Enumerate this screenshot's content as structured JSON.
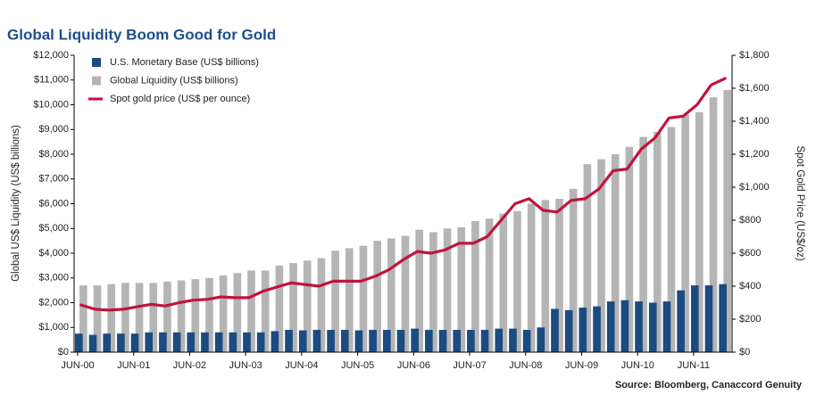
{
  "chart_data": {
    "type": "bar",
    "title": "Global Liquidity Boom Good for Gold",
    "y_label": "Global US$ Liquidity (US$ billions)",
    "y2_label": "Spot Gold Price (US$/oz)",
    "source": "Source:  Bloomberg, Canaccord Genuity",
    "categories": [
      "JUN-00",
      null,
      null,
      null,
      "JUN-01",
      null,
      null,
      null,
      "JUN-02",
      null,
      null,
      null,
      "JUN-03",
      null,
      null,
      null,
      "JUN-04",
      null,
      null,
      null,
      "JUN-05",
      null,
      null,
      null,
      "JUN-06",
      null,
      null,
      null,
      "JUN-07",
      null,
      null,
      null,
      "JUN-08",
      null,
      null,
      null,
      "JUN-09",
      null,
      null,
      null,
      "JUN-10",
      null,
      null,
      null,
      "JUN-11",
      null,
      null
    ],
    "series": [
      {
        "name": "U.S. Monetary Base (US$ billions)",
        "color": "#1b4b80",
        "type": "bar",
        "values": [
          750,
          700,
          750,
          750,
          750,
          800,
          800,
          800,
          800,
          800,
          800,
          800,
          800,
          800,
          850,
          900,
          880,
          900,
          900,
          900,
          880,
          900,
          900,
          900,
          950,
          900,
          900,
          900,
          900,
          900,
          950,
          950,
          900,
          1000,
          1750,
          1700,
          1800,
          1850,
          2050,
          2100,
          2050,
          2000,
          2050,
          2500,
          2700,
          2700,
          2750
        ]
      },
      {
        "name": "Global Liquidity (US$ billions)",
        "color": "#b5b5b5",
        "type": "bar",
        "values": [
          2700,
          2700,
          2750,
          2800,
          2800,
          2800,
          2850,
          2900,
          2950,
          3000,
          3100,
          3200,
          3300,
          3300,
          3500,
          3600,
          3700,
          3800,
          4100,
          4200,
          4300,
          4500,
          4600,
          4700,
          4950,
          4850,
          5000,
          5050,
          5300,
          5400,
          5600,
          5700,
          6000,
          6150,
          6200,
          6600,
          7600,
          7800,
          8000,
          8300,
          8700,
          8900,
          9100,
          9600,
          9700,
          10300,
          10600
        ]
      },
      {
        "name": "Spot gold price (US$ per ounce)",
        "color": "#c0143c",
        "type": "line",
        "axis": "y2",
        "values": [
          286,
          260,
          255,
          260,
          275,
          290,
          280,
          300,
          315,
          320,
          335,
          330,
          330,
          370,
          395,
          420,
          410,
          400,
          430,
          430,
          430,
          460,
          500,
          560,
          610,
          600,
          620,
          660,
          660,
          700,
          800,
          900,
          930,
          860,
          850,
          920,
          930,
          990,
          1100,
          1110,
          1230,
          1300,
          1420,
          1430,
          1500,
          1620,
          1660
        ]
      }
    ],
    "ylim": [
      0,
      12000
    ],
    "yticks": [
      {
        "value": 0,
        "label": "$0"
      },
      {
        "value": 1000,
        "label": "$1,000"
      },
      {
        "value": 2000,
        "label": "$2,000"
      },
      {
        "value": 3000,
        "label": "$3,000"
      },
      {
        "value": 4000,
        "label": "$4,000"
      },
      {
        "value": 5000,
        "label": "$5,000"
      },
      {
        "value": 6000,
        "label": "$6,000"
      },
      {
        "value": 7000,
        "label": "$7,000"
      },
      {
        "value": 8000,
        "label": "$8,000"
      },
      {
        "value": 9000,
        "label": "$9,000"
      },
      {
        "value": 10000,
        "label": "$10,000"
      },
      {
        "value": 11000,
        "label": "$11,000"
      },
      {
        "value": 12000,
        "label": "$12,000"
      }
    ],
    "y2lim": [
      0,
      1800
    ],
    "y2ticks": [
      {
        "value": 0,
        "label": "$0"
      },
      {
        "value": 200,
        "label": "$200"
      },
      {
        "value": 400,
        "label": "$400"
      },
      {
        "value": 600,
        "label": "$600"
      },
      {
        "value": 800,
        "label": "$800"
      },
      {
        "value": 1000,
        "label": "$1,000"
      },
      {
        "value": 1200,
        "label": "$1,200"
      },
      {
        "value": 1400,
        "label": "$1,400"
      },
      {
        "value": 1600,
        "label": "$1,600"
      },
      {
        "value": 1800,
        "label": "$1,800"
      }
    ],
    "legend": "top-left",
    "grid": false
  }
}
